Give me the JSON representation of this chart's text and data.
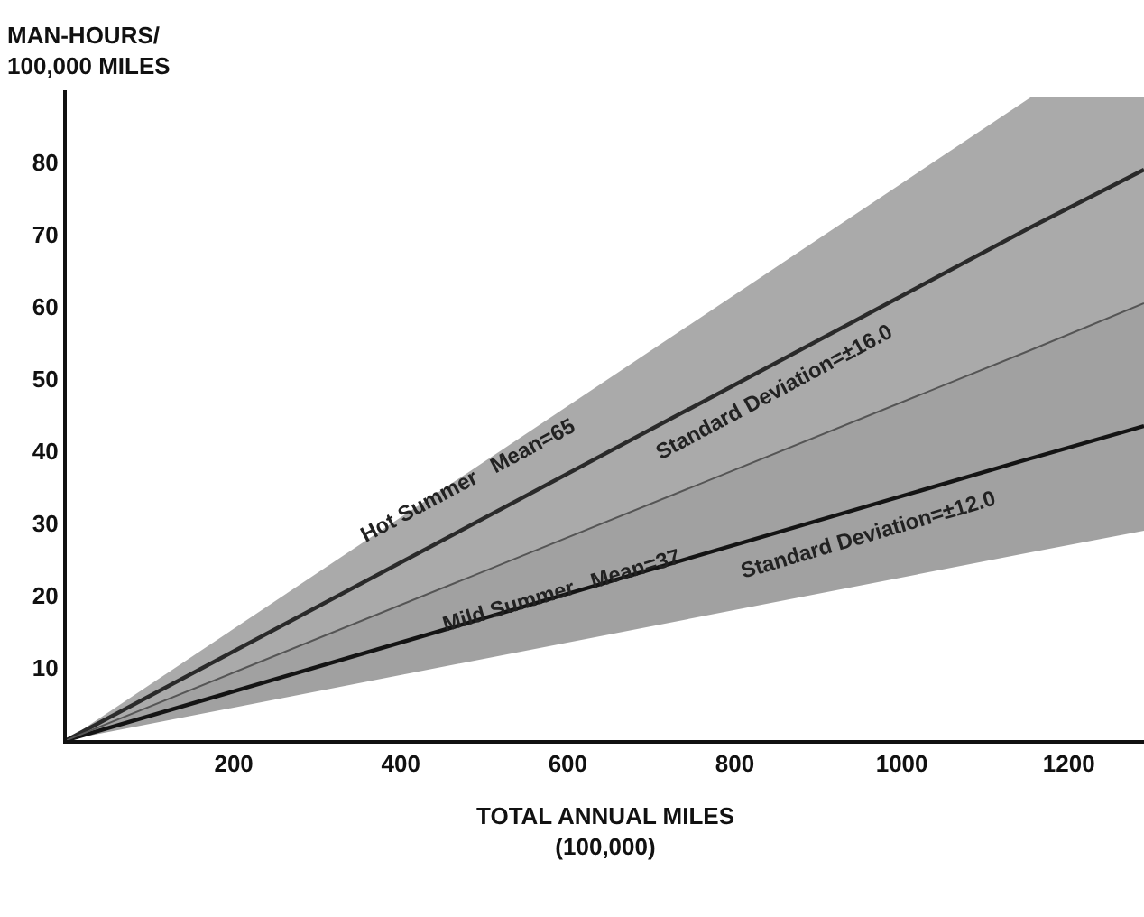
{
  "chart_data": {
    "type": "line",
    "xlabel": "TOTAL ANNUAL MILES\n(100,000)",
    "ylabel": "MAN-HOURS/\n100,000 MILES",
    "x": [
      0,
      1154,
      1290
    ],
    "series": [
      {
        "color": "#2a2a2a",
        "values": [
          0,
          71,
          79
        ],
        "lower": [
          0,
          54,
          60.5
        ],
        "upper": [
          0,
          89,
          89
        ]
      },
      {
        "color": "#141414",
        "values": [
          0,
          39,
          43.5
        ],
        "lower": [
          0,
          26,
          29
        ],
        "upper": [
          0,
          54,
          60.5
        ]
      },
      {
        "color": "#555555",
        "values": [
          0,
          54,
          60.5
        ],
        "line_style": "solid"
      }
    ],
    "annotations": [
      {
        "text": "Hot Summer   Mean=65",
        "x": 480,
        "y": 36
      },
      "Standard Deviation=±16.0",
      {
        "text": "Mild Summer   Mean=37",
        "x": 593,
        "y": 20.7
      },
      "Standard Deviation=±12.0"
    ],
    "xlim": [
      0,
      1290
    ],
    "ylim": [
      0,
      90
    ],
    "xticks": [
      200,
      400,
      600,
      800,
      1000,
      1200
    ],
    "yticks": [
      10,
      20,
      30,
      40,
      50,
      60,
      70,
      80
    ]
  }
}
